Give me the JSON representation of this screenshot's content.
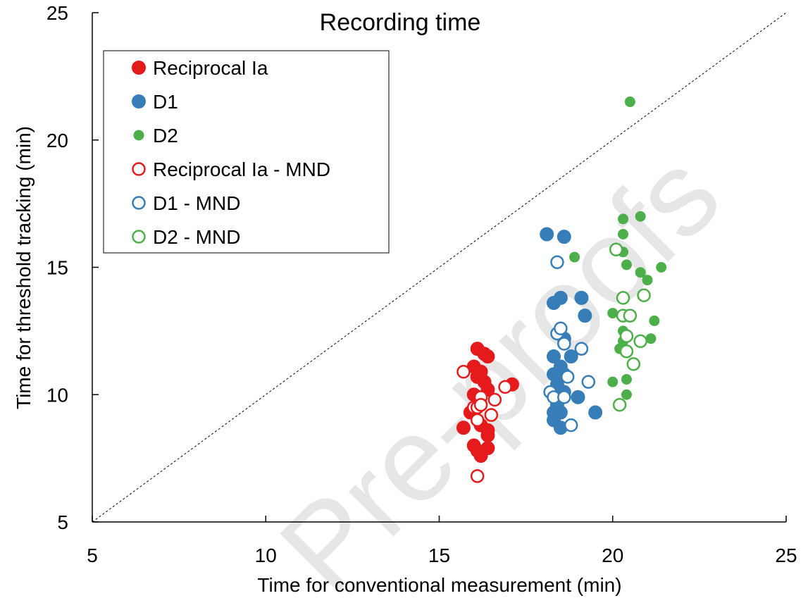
{
  "chart_data": {
    "type": "scatter",
    "title": "Recording time",
    "xlabel": "Time for conventional measurement (min)",
    "ylabel": "Time for threshold tracking (min)",
    "xlim": [
      5,
      25
    ],
    "ylim": [
      5,
      25
    ],
    "xticks": [
      5,
      10,
      15,
      20,
      25
    ],
    "yticks": [
      5,
      10,
      15,
      20,
      25
    ],
    "grid": false,
    "legend_position": "top-left",
    "identity_line": true,
    "watermark": "Pre-proofs",
    "series": [
      {
        "name": "Reciprocal Ia",
        "color": "#e41a1c",
        "filled": true,
        "size": "large",
        "points": [
          [
            16.1,
            11.8
          ],
          [
            16.3,
            11.6
          ],
          [
            16.4,
            11.5
          ],
          [
            16.0,
            11.1
          ],
          [
            16.2,
            10.9
          ],
          [
            16.1,
            10.7
          ],
          [
            16.3,
            10.5
          ],
          [
            16.4,
            10.2
          ],
          [
            16.0,
            10.0
          ],
          [
            15.9,
            9.3
          ],
          [
            16.2,
            8.8
          ],
          [
            15.7,
            8.7
          ],
          [
            16.4,
            8.6
          ],
          [
            16.4,
            8.4
          ],
          [
            16.0,
            8.0
          ],
          [
            16.1,
            7.8
          ],
          [
            16.2,
            7.6
          ],
          [
            16.4,
            7.9
          ],
          [
            17.1,
            10.4
          ]
        ]
      },
      {
        "name": "D1",
        "color": "#377eb8",
        "filled": true,
        "size": "large",
        "points": [
          [
            18.1,
            16.3
          ],
          [
            18.6,
            16.2
          ],
          [
            18.5,
            13.8
          ],
          [
            18.3,
            13.6
          ],
          [
            19.1,
            13.8
          ],
          [
            19.2,
            13.1
          ],
          [
            18.6,
            12.2
          ],
          [
            18.3,
            11.5
          ],
          [
            18.8,
            11.5
          ],
          [
            18.5,
            11.1
          ],
          [
            18.3,
            10.8
          ],
          [
            18.6,
            10.8
          ],
          [
            18.4,
            10.4
          ],
          [
            18.6,
            10.1
          ],
          [
            19.0,
            9.9
          ],
          [
            18.4,
            9.6
          ],
          [
            18.3,
            9.3
          ],
          [
            18.5,
            9.3
          ],
          [
            19.5,
            9.3
          ],
          [
            18.3,
            9.0
          ],
          [
            18.5,
            8.7
          ]
        ]
      },
      {
        "name": "D2",
        "color": "#4daf4a",
        "filled": true,
        "size": "small",
        "points": [
          [
            20.5,
            21.5
          ],
          [
            18.9,
            15.4
          ],
          [
            20.3,
            16.9
          ],
          [
            20.3,
            16.3
          ],
          [
            20.8,
            17.0
          ],
          [
            20.3,
            15.6
          ],
          [
            20.4,
            15.1
          ],
          [
            20.8,
            14.8
          ],
          [
            21.4,
            15.0
          ],
          [
            21.0,
            14.5
          ],
          [
            20.0,
            13.2
          ],
          [
            20.3,
            12.5
          ],
          [
            21.2,
            12.9
          ],
          [
            20.3,
            12.1
          ],
          [
            21.1,
            12.2
          ],
          [
            20.2,
            11.8
          ],
          [
            20.4,
            10.6
          ],
          [
            20.0,
            10.5
          ],
          [
            20.4,
            10.0
          ]
        ]
      },
      {
        "name": "Reciprocal Ia - MND",
        "color": "#e41a1c",
        "filled": false,
        "size": "large",
        "points": [
          [
            15.7,
            10.9
          ],
          [
            16.9,
            10.3
          ],
          [
            16.2,
            9.9
          ],
          [
            16.6,
            9.8
          ],
          [
            16.0,
            9.5
          ],
          [
            16.1,
            9.5
          ],
          [
            16.2,
            9.6
          ],
          [
            16.5,
            9.2
          ],
          [
            16.1,
            9.0
          ],
          [
            16.1,
            6.8
          ]
        ]
      },
      {
        "name": "D1 - MND",
        "color": "#377eb8",
        "filled": false,
        "size": "large",
        "points": [
          [
            18.4,
            15.2
          ],
          [
            18.4,
            12.4
          ],
          [
            18.5,
            12.6
          ],
          [
            18.6,
            12.0
          ],
          [
            19.1,
            11.8
          ],
          [
            18.7,
            10.7
          ],
          [
            18.2,
            10.1
          ],
          [
            18.3,
            9.9
          ],
          [
            18.6,
            9.9
          ],
          [
            19.3,
            10.5
          ],
          [
            18.8,
            8.8
          ]
        ]
      },
      {
        "name": "D2 - MND",
        "color": "#4daf4a",
        "filled": false,
        "size": "large",
        "points": [
          [
            20.1,
            15.7
          ],
          [
            20.3,
            13.8
          ],
          [
            20.9,
            13.9
          ],
          [
            20.3,
            13.1
          ],
          [
            20.5,
            13.1
          ],
          [
            20.4,
            12.3
          ],
          [
            20.8,
            12.1
          ],
          [
            20.4,
            11.7
          ],
          [
            20.6,
            11.2
          ],
          [
            20.2,
            9.6
          ]
        ]
      }
    ]
  }
}
